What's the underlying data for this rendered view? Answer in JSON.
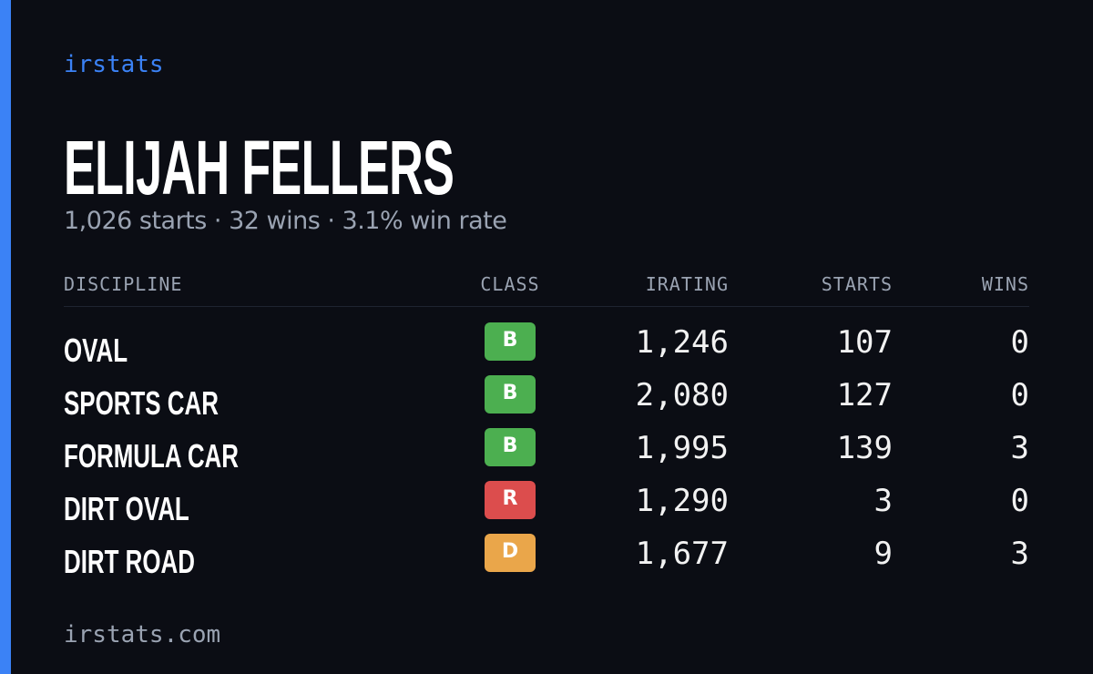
{
  "brand": "irstats",
  "driver_name": "ELIJAH FELLERS",
  "summary": "1,026 starts · 32 wins · 3.1% win rate",
  "table": {
    "headers": [
      "DISCIPLINE",
      "CLASS",
      "IRATING",
      "STARTS",
      "WINS"
    ],
    "rows": [
      {
        "discipline": "OVAL",
        "class": "B",
        "class_color": "#4caf50",
        "irating": "1,246",
        "starts": "107",
        "wins": "0"
      },
      {
        "discipline": "SPORTS CAR",
        "class": "B",
        "class_color": "#4caf50",
        "irating": "2,080",
        "starts": "127",
        "wins": "0"
      },
      {
        "discipline": "FORMULA CAR",
        "class": "B",
        "class_color": "#4caf50",
        "irating": "1,995",
        "starts": "139",
        "wins": "3"
      },
      {
        "discipline": "DIRT OVAL",
        "class": "R",
        "class_color": "#dc4d4d",
        "irating": "1,290",
        "starts": "3",
        "wins": "0"
      },
      {
        "discipline": "DIRT ROAD",
        "class": "D",
        "class_color": "#eaa64a",
        "irating": "1,677",
        "starts": "9",
        "wins": "3"
      }
    ]
  },
  "footer": "irstats.com"
}
